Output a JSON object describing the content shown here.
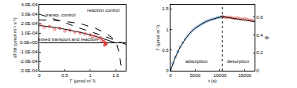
{
  "chart_data": [
    {
      "type": "scatter",
      "x_label": "Γ (µmol m⁻²)",
      "y_label": "dΓ/dt (µmol m⁻² s⁻¹)",
      "xlim": [
        0,
        1.7
      ],
      "xticks": [
        0,
        0.5,
        1,
        1.5
      ],
      "ylim": [
        -0.0003,
        0.0004
      ],
      "yticks": [
        {
          "value": -0.0003,
          "label": "-3.0E-04"
        },
        {
          "value": -0.0002,
          "label": "-2.0E-04"
        },
        {
          "value": -0.0001,
          "label": "-1.0E-04"
        },
        {
          "value": 0,
          "label": "0.0E+00"
        },
        {
          "value": 0.0001,
          "label": "1.0E-04"
        },
        {
          "value": 0.0002,
          "label": "2.0E-04"
        },
        {
          "value": 0.0003,
          "label": "3.0E-04"
        },
        {
          "value": 0.0004,
          "label": "4.0E-04"
        }
      ],
      "grid": false,
      "series": [
        {
          "type": "line",
          "color": "#000000",
          "line_style": "dash",
          "x": [
            0,
            0.4,
            0.8,
            1.2,
            1.55,
            1.7
          ],
          "values": [
            0.0003,
            0.00023,
            0.00015,
            8e-05,
            1e-05,
            -2e-05
          ]
        },
        {
          "type": "line",
          "color": "#000000",
          "line_style": "dash",
          "x": [
            0,
            0.4,
            0.8,
            1.1,
            1.3,
            1.45,
            1.52,
            1.57,
            1.62
          ],
          "values": [
            0.00024,
            0.00023,
            0.0002,
            0.00015,
            0.0001,
            4e-05,
            -2e-05,
            -0.00012,
            -0.0003
          ]
        },
        {
          "type": "line",
          "color": "#000000",
          "line_style": "solid",
          "x": [
            0,
            0.3,
            0.6,
            0.9,
            1.2,
            1.4,
            1.5
          ],
          "values": [
            0.00018,
            0.00016,
            0.00013,
            9.5e-05,
            5e-05,
            1.5e-05,
            -5e-06
          ]
        },
        {
          "type": "scatter",
          "color": "#e03030",
          "marker": "circle-open",
          "x": [
            0.02,
            0.1,
            0.2,
            0.3,
            0.4,
            0.5,
            0.6,
            0.7,
            0.8,
            0.9,
            1.0,
            1.05,
            1.1,
            1.15,
            1.2,
            1.22,
            1.25,
            1.27,
            1.29,
            1.3,
            1.31,
            1.3,
            1.29,
            1.28
          ],
          "values": [
            0.00019,
            0.00016,
            0.00017,
            0.00014,
            0.00015,
            0.00012,
            0.00013,
            0.00011,
            0.0001,
            9e-05,
            8e-05,
            6e-05,
            7e-05,
            4e-05,
            5e-05,
            2e-05,
            3e-05,
            1e-05,
            0.0,
            -1e-05,
            -2e-05,
            -1e-05,
            -2e-05,
            -3e-05
          ]
        }
      ],
      "annotations": [
        {
          "text": "transp. control",
          "x": 0.42,
          "y": 0.00029
        },
        {
          "text": "reaction control",
          "x": 1.25,
          "y": 0.00034
        },
        {
          "text": "mixed transport and reaction",
          "x": 0.55,
          "y": 3e-05
        }
      ]
    },
    {
      "type": "scatter",
      "x_label": "t (s)",
      "y_label": "Γ (µmol m⁻²)",
      "y2_label": "θ",
      "xlim": [
        0,
        17000
      ],
      "xticks": [
        0,
        5000,
        10000,
        15000
      ],
      "ylim": [
        0,
        1.6
      ],
      "yticks": [
        0,
        0.5,
        1,
        1.5
      ],
      "y2lim": [
        0,
        0.74
      ],
      "y2ticks": [
        0,
        0.2,
        0.4,
        0.6
      ],
      "grid": false,
      "vline": 10500,
      "series": [
        {
          "type": "scatter",
          "color": "#5b9bd5",
          "marker": "circle-open",
          "x": [
            0,
            500,
            1000,
            1500,
            2000,
            2500,
            3000,
            3500,
            4000,
            4500,
            5000,
            5500,
            6000,
            6500,
            7000,
            7500,
            8000,
            8500,
            9000,
            9500,
            10000,
            10500
          ],
          "values": [
            0,
            0.18,
            0.33,
            0.46,
            0.58,
            0.68,
            0.77,
            0.85,
            0.92,
            0.98,
            1.03,
            1.07,
            1.11,
            1.15,
            1.18,
            1.21,
            1.23,
            1.25,
            1.27,
            1.29,
            1.3,
            1.31
          ]
        },
        {
          "type": "scatter",
          "color": "#e03030",
          "marker": "circle-open",
          "x": [
            10500,
            11000,
            11500,
            12000,
            12500,
            13000,
            13500,
            14000,
            14500,
            15000,
            15500,
            16000,
            16500
          ],
          "values": [
            1.31,
            1.3,
            1.29,
            1.3,
            1.28,
            1.27,
            1.28,
            1.26,
            1.25,
            1.26,
            1.24,
            1.23,
            1.22
          ]
        },
        {
          "type": "line",
          "color": "#000000",
          "line_style": "solid",
          "x": [
            0,
            1000,
            2000,
            3000,
            4000,
            5000,
            6000,
            7000,
            8000,
            9000,
            10000,
            10500,
            17000
          ],
          "values": [
            0,
            0.33,
            0.58,
            0.77,
            0.92,
            1.03,
            1.11,
            1.18,
            1.23,
            1.27,
            1.3,
            1.31,
            1.19
          ]
        }
      ],
      "annotations": [
        {
          "text": "adsorption",
          "x": 5200,
          "y": 0.22
        },
        {
          "text": "desorption",
          "x": 13700,
          "y": 0.22
        }
      ]
    }
  ]
}
